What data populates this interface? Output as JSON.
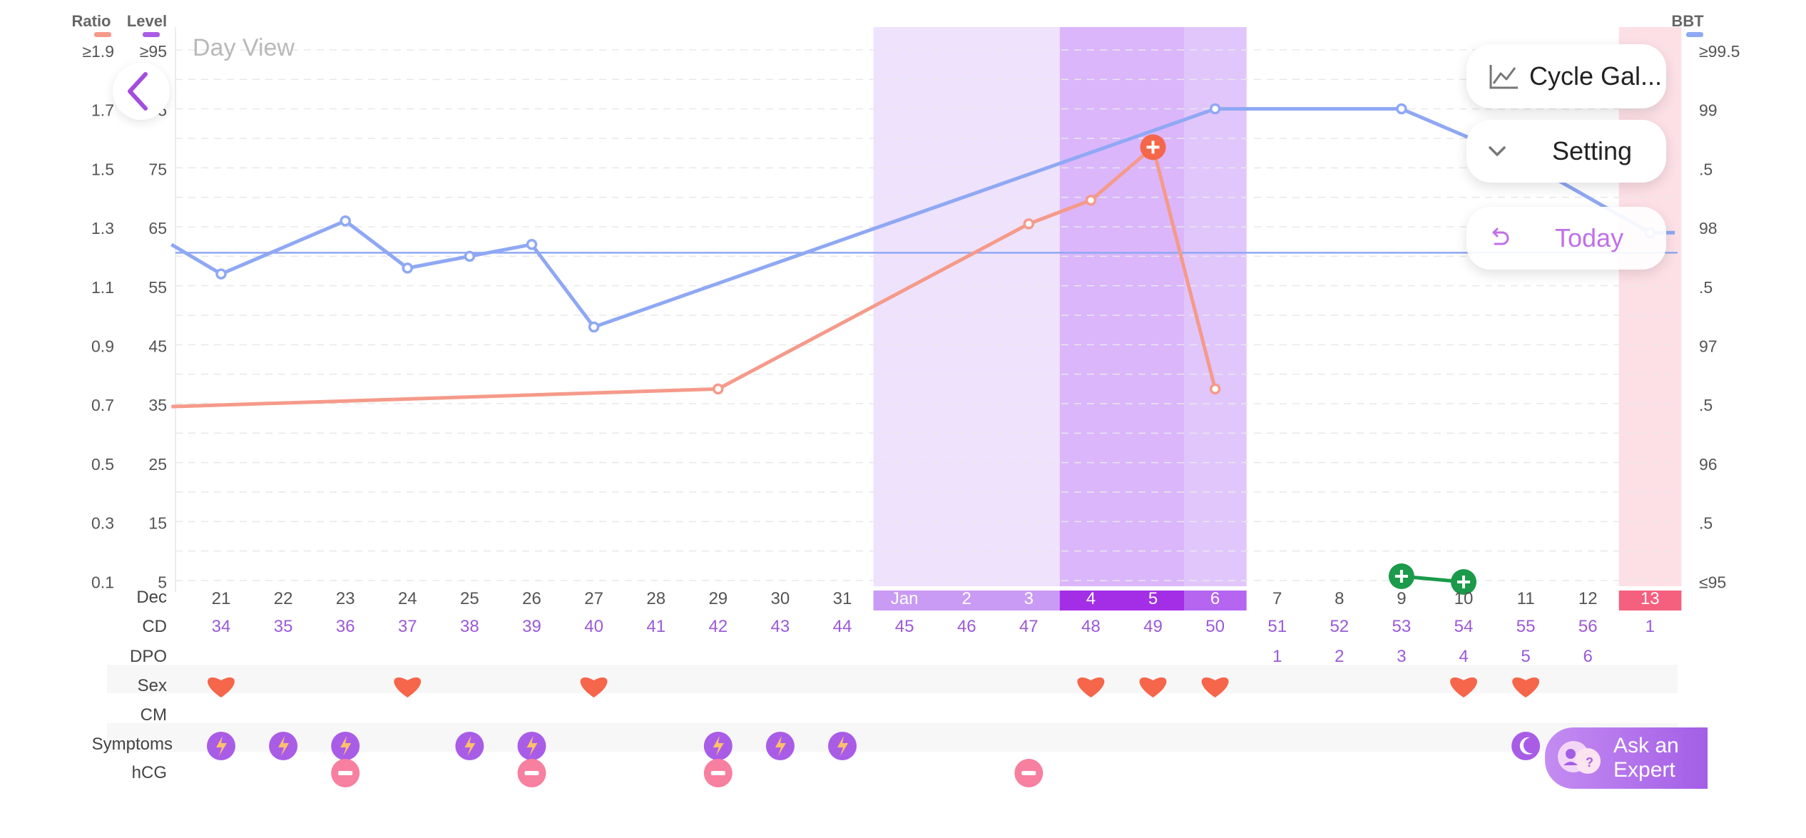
{
  "header": {
    "title": "Day View",
    "ratio_label": "Ratio",
    "level_label": "Level",
    "bbt_label": "BBT"
  },
  "axes": {
    "ratio_ticks": [
      "≥1.9",
      "1.7",
      "1.5",
      "1.3",
      "1.1",
      "0.9",
      "0.7",
      "0.5",
      "0.3",
      "0.1"
    ],
    "level_ticks": [
      "≥95",
      "85",
      "75",
      "65",
      "55",
      "45",
      "35",
      "25",
      "15",
      "5"
    ],
    "bbt_ticks": [
      "≥99.5",
      "99",
      ".5",
      "98",
      ".5",
      "97",
      ".5",
      "96",
      ".5",
      "≤95"
    ]
  },
  "controls": {
    "cycle_gallery": "Cycle Gal...",
    "setting": "Setting",
    "today": "Today",
    "ask_expert_line1": "Ask an",
    "ask_expert_line2": "Expert"
  },
  "colors": {
    "bbt": "#8fa8f4",
    "lh": "#f59a8a",
    "fertile_light": "#efe2fd",
    "fertile_mid": "#e1c6fc",
    "fertile_peak": "#dbb6fb",
    "period": "#fde0e6",
    "purple_text": "#9b59d8",
    "heart": "#f5664a",
    "symptom": "#a95de6",
    "hcg": "#f77fa0",
    "preg_test": "#1a9a4a"
  },
  "rows": {
    "month_label": "Dec",
    "cd_label": "CD",
    "dpo_label": "DPO",
    "sex_label": "Sex",
    "cm_label": "CM",
    "symptoms_label": "Symptoms",
    "hcg_label": "hCG"
  },
  "days": [
    {
      "date": "21",
      "cd": "34",
      "dpo": "",
      "sex": true,
      "symptom": true,
      "hcg": false
    },
    {
      "date": "22",
      "cd": "35",
      "dpo": "",
      "sex": false,
      "symptom": true,
      "hcg": false
    },
    {
      "date": "23",
      "cd": "36",
      "dpo": "",
      "sex": false,
      "symptom": true,
      "hcg": true
    },
    {
      "date": "24",
      "cd": "37",
      "dpo": "",
      "sex": true,
      "symptom": false,
      "hcg": false
    },
    {
      "date": "25",
      "cd": "38",
      "dpo": "",
      "sex": false,
      "symptom": true,
      "hcg": false
    },
    {
      "date": "26",
      "cd": "39",
      "dpo": "",
      "sex": false,
      "symptom": true,
      "hcg": true
    },
    {
      "date": "27",
      "cd": "40",
      "dpo": "",
      "sex": true,
      "symptom": false,
      "hcg": false
    },
    {
      "date": "28",
      "cd": "41",
      "dpo": "",
      "sex": false,
      "symptom": false,
      "hcg": false
    },
    {
      "date": "29",
      "cd": "42",
      "dpo": "",
      "sex": false,
      "symptom": true,
      "hcg": true
    },
    {
      "date": "30",
      "cd": "43",
      "dpo": "",
      "sex": false,
      "symptom": true,
      "hcg": false
    },
    {
      "date": "31",
      "cd": "44",
      "dpo": "",
      "sex": false,
      "symptom": true,
      "hcg": false
    },
    {
      "date": "Jan",
      "cd": "45",
      "dpo": "",
      "sex": false,
      "symptom": false,
      "hcg": false,
      "band": "light"
    },
    {
      "date": "2",
      "cd": "46",
      "dpo": "",
      "sex": false,
      "symptom": false,
      "hcg": false,
      "band": "light"
    },
    {
      "date": "3",
      "cd": "47",
      "dpo": "",
      "sex": false,
      "symptom": false,
      "hcg": true,
      "band": "light"
    },
    {
      "date": "4",
      "cd": "48",
      "dpo": "",
      "sex": true,
      "symptom": false,
      "hcg": false,
      "band": "peak"
    },
    {
      "date": "5",
      "cd": "49",
      "dpo": "",
      "sex": true,
      "symptom": false,
      "hcg": false,
      "band": "peak"
    },
    {
      "date": "6",
      "cd": "50",
      "dpo": "",
      "sex": true,
      "symptom": false,
      "hcg": false,
      "band": "mid"
    },
    {
      "date": "7",
      "cd": "51",
      "dpo": "1",
      "sex": false,
      "symptom": false,
      "hcg": false
    },
    {
      "date": "8",
      "cd": "52",
      "dpo": "2",
      "sex": false,
      "symptom": false,
      "hcg": false
    },
    {
      "date": "9",
      "cd": "53",
      "dpo": "3",
      "sex": false,
      "symptom": false,
      "hcg": false
    },
    {
      "date": "10",
      "cd": "54",
      "dpo": "4",
      "sex": true,
      "symptom": false,
      "hcg": false
    },
    {
      "date": "11",
      "cd": "55",
      "dpo": "5",
      "sex": true,
      "symptom": false,
      "hcg": false,
      "moon": true
    },
    {
      "date": "12",
      "cd": "56",
      "dpo": "6",
      "sex": false,
      "symptom": false,
      "hcg": false
    },
    {
      "date": "13",
      "cd": "1",
      "dpo": "",
      "sex": false,
      "symptom": false,
      "hcg": false,
      "band": "period"
    }
  ],
  "chart_data": {
    "type": "line",
    "x": [
      "21",
      "22",
      "23",
      "24",
      "25",
      "26",
      "27",
      "28",
      "29",
      "30",
      "31",
      "Jan",
      "2",
      "3",
      "4",
      "5",
      "6",
      "7",
      "8",
      "9",
      "10",
      "11",
      "12",
      "13"
    ],
    "series": [],
    "bbt_points": [
      {
        "i": -0.8,
        "v": 97.85
      },
      {
        "i": 0,
        "v": 97.6
      },
      {
        "i": 2,
        "v": 98.05
      },
      {
        "i": 3,
        "v": 97.65
      },
      {
        "i": 4,
        "v": 97.75
      },
      {
        "i": 5,
        "v": 97.85
      },
      {
        "i": 6,
        "v": 97.15
      },
      {
        "i": 16,
        "v": 99.0
      },
      {
        "i": 19,
        "v": 99.0
      },
      {
        "i": 21,
        "v": 98.55
      },
      {
        "i": 23,
        "v": 97.95
      },
      {
        "i": 23.4,
        "v": 97.95
      }
    ],
    "bbt_coverline": 97.78,
    "lh_points": [
      {
        "i": -0.8,
        "v": 0.69
      },
      {
        "i": 8,
        "v": 0.75
      },
      {
        "i": 13,
        "v": 1.31
      },
      {
        "i": 14,
        "v": 1.39
      },
      {
        "i": 15,
        "v": 1.57
      },
      {
        "i": 16,
        "v": 0.75
      }
    ],
    "lh_peak_index": 15,
    "pregnancy_tests": [
      {
        "i": 19
      },
      {
        "i": 20
      }
    ],
    "ratio_range": [
      0.1,
      1.9
    ],
    "bbt_range": [
      95,
      99.5
    ]
  }
}
